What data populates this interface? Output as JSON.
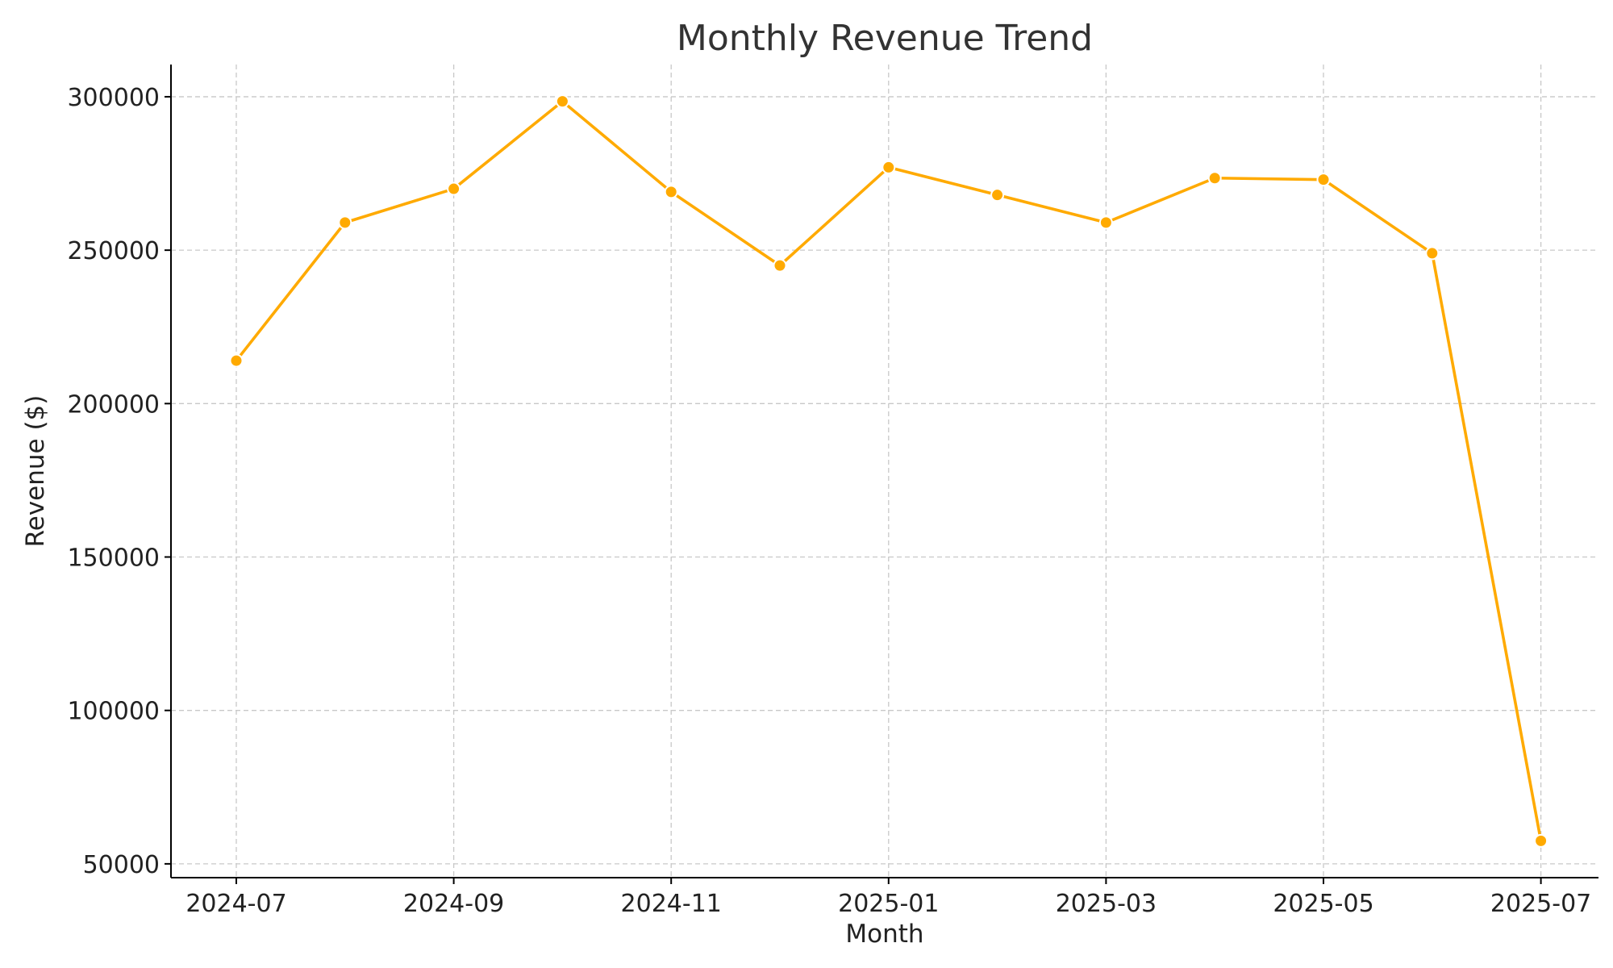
{
  "chart_data": {
    "type": "line",
    "title": "Monthly Revenue Trend",
    "xlabel": "Month",
    "ylabel": "Revenue ($)",
    "x": [
      "2024-07",
      "2024-08",
      "2024-09",
      "2024-10",
      "2024-11",
      "2024-12",
      "2025-01",
      "2025-02",
      "2025-03",
      "2025-04",
      "2025-05",
      "2025-06",
      "2025-07"
    ],
    "x_ticks": [
      "2024-07",
      "2024-09",
      "2024-11",
      "2025-01",
      "2025-03",
      "2025-05",
      "2025-07"
    ],
    "y_ticks": [
      50000,
      100000,
      150000,
      200000,
      250000,
      300000
    ],
    "ylim": [
      45500,
      310500
    ],
    "grid": true,
    "series": [
      {
        "color": "#FFAA00",
        "values": [
          214000,
          259000,
          270000,
          298500,
          269000,
          245000,
          277000,
          268000,
          259000,
          273500,
          273000,
          249000,
          57500
        ]
      }
    ]
  }
}
